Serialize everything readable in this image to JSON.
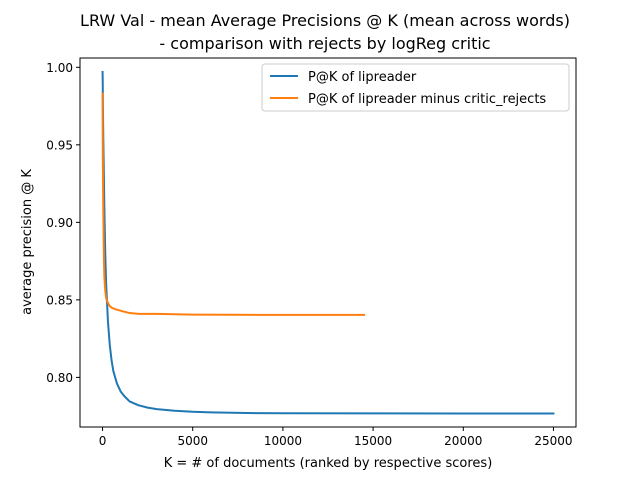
{
  "chart_data": {
    "type": "line",
    "title_line1": "LRW Val - mean Average Precisions @ K (mean across words)",
    "title_line2": "- comparison with rejects by logReg critic",
    "xlabel": "K = # of documents (ranked by respective scores)",
    "ylabel": "average precision @ K",
    "xlim": [
      -1250,
      26250
    ],
    "ylim": [
      0.768,
      1.006
    ],
    "xticks": [
      0,
      5000,
      10000,
      15000,
      20000,
      25000
    ],
    "xtick_labels": [
      "0",
      "5000",
      "10000",
      "15000",
      "20000",
      "25000"
    ],
    "yticks": [
      0.8,
      0.85,
      0.9,
      0.95,
      1.0
    ],
    "ytick_labels": [
      "0.80",
      "0.85",
      "0.90",
      "0.95",
      "1.00"
    ],
    "grid": false,
    "legend_position": "top-right",
    "series": [
      {
        "name": "P@K of lipreader",
        "color": "#1f77b4",
        "points": [
          [
            1,
            0.997
          ],
          [
            5,
            0.995
          ],
          [
            10,
            0.99
          ],
          [
            20,
            0.975
          ],
          [
            40,
            0.955
          ],
          [
            60,
            0.94
          ],
          [
            80,
            0.925
          ],
          [
            100,
            0.91
          ],
          [
            150,
            0.88
          ],
          [
            200,
            0.86
          ],
          [
            300,
            0.836
          ],
          [
            400,
            0.821
          ],
          [
            500,
            0.811
          ],
          [
            600,
            0.804
          ],
          [
            800,
            0.796
          ],
          [
            1000,
            0.791
          ],
          [
            1200,
            0.788
          ],
          [
            1500,
            0.7845
          ],
          [
            2000,
            0.782
          ],
          [
            2500,
            0.7805
          ],
          [
            3000,
            0.7795
          ],
          [
            4000,
            0.7785
          ],
          [
            5000,
            0.7778
          ],
          [
            6000,
            0.7774
          ],
          [
            8000,
            0.777
          ],
          [
            10000,
            0.7769
          ],
          [
            15000,
            0.7768
          ],
          [
            20000,
            0.7767
          ],
          [
            25000,
            0.7767
          ]
        ]
      },
      {
        "name": "P@K of lipreader minus critic_rejects",
        "color": "#ff7f0e",
        "points": [
          [
            1,
            0.983
          ],
          [
            5,
            0.97
          ],
          [
            10,
            0.955
          ],
          [
            20,
            0.935
          ],
          [
            40,
            0.91
          ],
          [
            60,
            0.89
          ],
          [
            80,
            0.875
          ],
          [
            100,
            0.865
          ],
          [
            150,
            0.856
          ],
          [
            200,
            0.851
          ],
          [
            300,
            0.848
          ],
          [
            400,
            0.846
          ],
          [
            500,
            0.845
          ],
          [
            700,
            0.844
          ],
          [
            1000,
            0.843
          ],
          [
            1500,
            0.8415
          ],
          [
            2000,
            0.841
          ],
          [
            3000,
            0.841
          ],
          [
            4000,
            0.8407
          ],
          [
            5000,
            0.8405
          ],
          [
            7000,
            0.8404
          ],
          [
            10000,
            0.8403
          ],
          [
            12000,
            0.8403
          ],
          [
            14500,
            0.8403
          ]
        ]
      }
    ]
  }
}
